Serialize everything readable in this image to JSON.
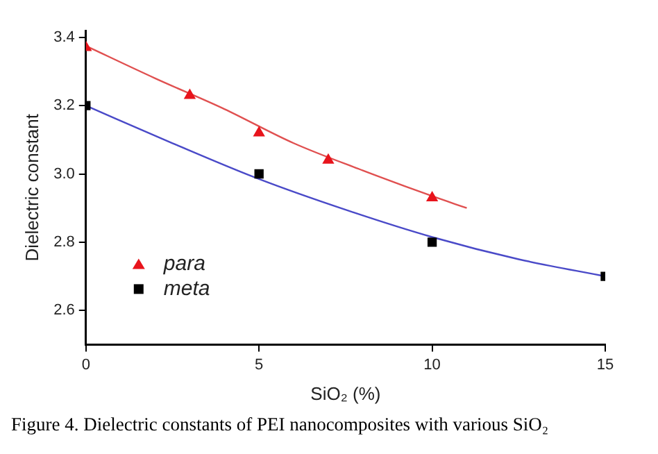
{
  "chart_data": {
    "type": "scatter",
    "xlabel": "SiO₂ (%)",
    "ylabel": "Dielectric constant",
    "xlim": [
      0,
      15
    ],
    "xticks": [
      0,
      5,
      10,
      15
    ],
    "ylim": [
      2.5,
      3.42
    ],
    "yticks": [
      2.6,
      2.8,
      {
        "value": 3,
        "label": "3.0"
      },
      3.2,
      3.4
    ],
    "grid": false,
    "legend": "bottom left",
    "series": [
      {
        "name": "para",
        "type": "scatter",
        "marker": "triangle",
        "color": "#e8141c",
        "x": [
          0,
          3,
          5,
          7,
          10
        ],
        "values": [
          3.37,
          3.23,
          3.12,
          3.04,
          2.93
        ]
      },
      {
        "name": "meta",
        "type": "scatter",
        "marker": "square",
        "color": "#000000",
        "x": [
          0,
          5,
          10,
          15
        ],
        "values": [
          3.2,
          3.0,
          2.8,
          2.7
        ]
      },
      {
        "type": "line",
        "marker": "none",
        "line_style": "solid",
        "color": "#e05050",
        "x": [
          0,
          2,
          4,
          6,
          8,
          10,
          11
        ],
        "values": [
          3.375,
          3.28,
          3.19,
          3.09,
          3.01,
          2.935,
          2.9
        ]
      },
      {
        "type": "line",
        "marker": "none",
        "line_style": "solid",
        "color": "#4a4ac8",
        "x": [
          0,
          2.5,
          5,
          7.5,
          10,
          12.5,
          15
        ],
        "values": [
          3.2,
          3.09,
          2.985,
          2.895,
          2.815,
          2.75,
          2.7
        ]
      }
    ],
    "annotations": [
      "Figure 4.  Dielectric constants of PEI nanocomposites with various SiO₂"
    ]
  }
}
